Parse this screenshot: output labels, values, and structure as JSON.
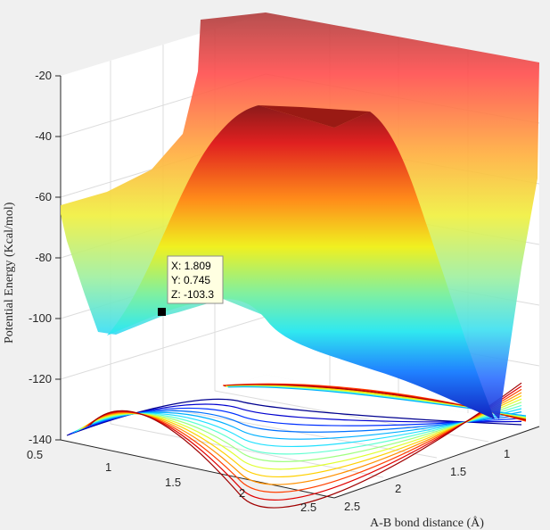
{
  "chart_data": {
    "type": "surface",
    "title": "",
    "xlabel": "A-B bond distance (Å)",
    "ylabel": "",
    "zlabel": "Potential Energy (Kcal/mol)",
    "x_ticks": [
      "1",
      "1.5",
      "2",
      "2.5"
    ],
    "y_ticks": [
      "0.5",
      "1",
      "1.5",
      "2",
      "2.5"
    ],
    "z_ticks": [
      "-20",
      "-40",
      "-60",
      "-80",
      "-100",
      "-120",
      "-140"
    ],
    "xlim": [
      0.5,
      2.5
    ],
    "ylim": [
      0.5,
      2.5
    ],
    "zlim": [
      -140,
      -20
    ],
    "colormap": "jet",
    "contour_projection": true,
    "grid": true,
    "datatip": {
      "x_label": "X: 1.809",
      "y_label": "Y: 0.745",
      "z_label": "Z: -103.3",
      "x": 1.809,
      "y": 0.745,
      "z": -103.3
    }
  }
}
